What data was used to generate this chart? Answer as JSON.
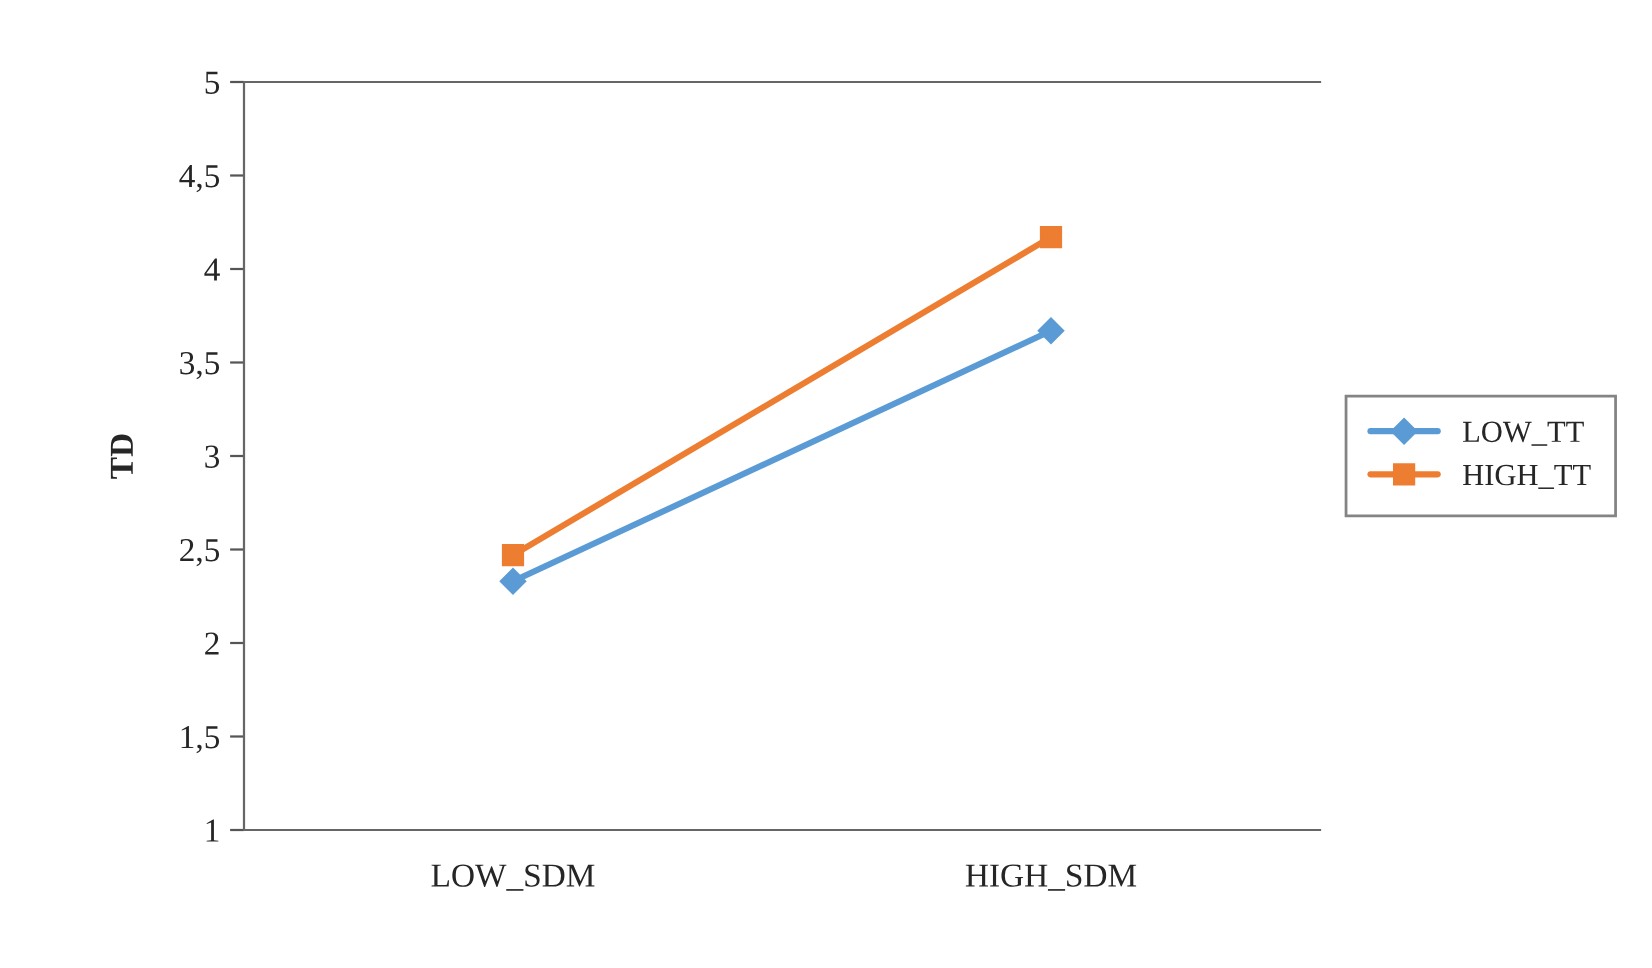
{
  "chart_data": {
    "type": "line",
    "ylabel": "TD",
    "categories": [
      "LOW_SDM",
      "HIGH_SDM"
    ],
    "series": [
      {
        "name": "LOW_TT",
        "color": "#5b9bd5",
        "marker": "diamond",
        "values": [
          2.33,
          3.67
        ]
      },
      {
        "name": "HIGH_TT",
        "color": "#ed7d31",
        "marker": "square",
        "values": [
          2.47,
          4.17
        ]
      }
    ],
    "ylim": [
      1,
      5
    ],
    "yticks": [
      1,
      {
        "value": 1.5,
        "label": "1,5"
      },
      2,
      {
        "value": 2.5,
        "label": "2,5"
      },
      3,
      {
        "value": 3.5,
        "label": "3,5"
      },
      4,
      {
        "value": 4.5,
        "label": "4,5"
      },
      5
    ],
    "grid": false,
    "legend": "right",
    "line_style": "solid"
  }
}
